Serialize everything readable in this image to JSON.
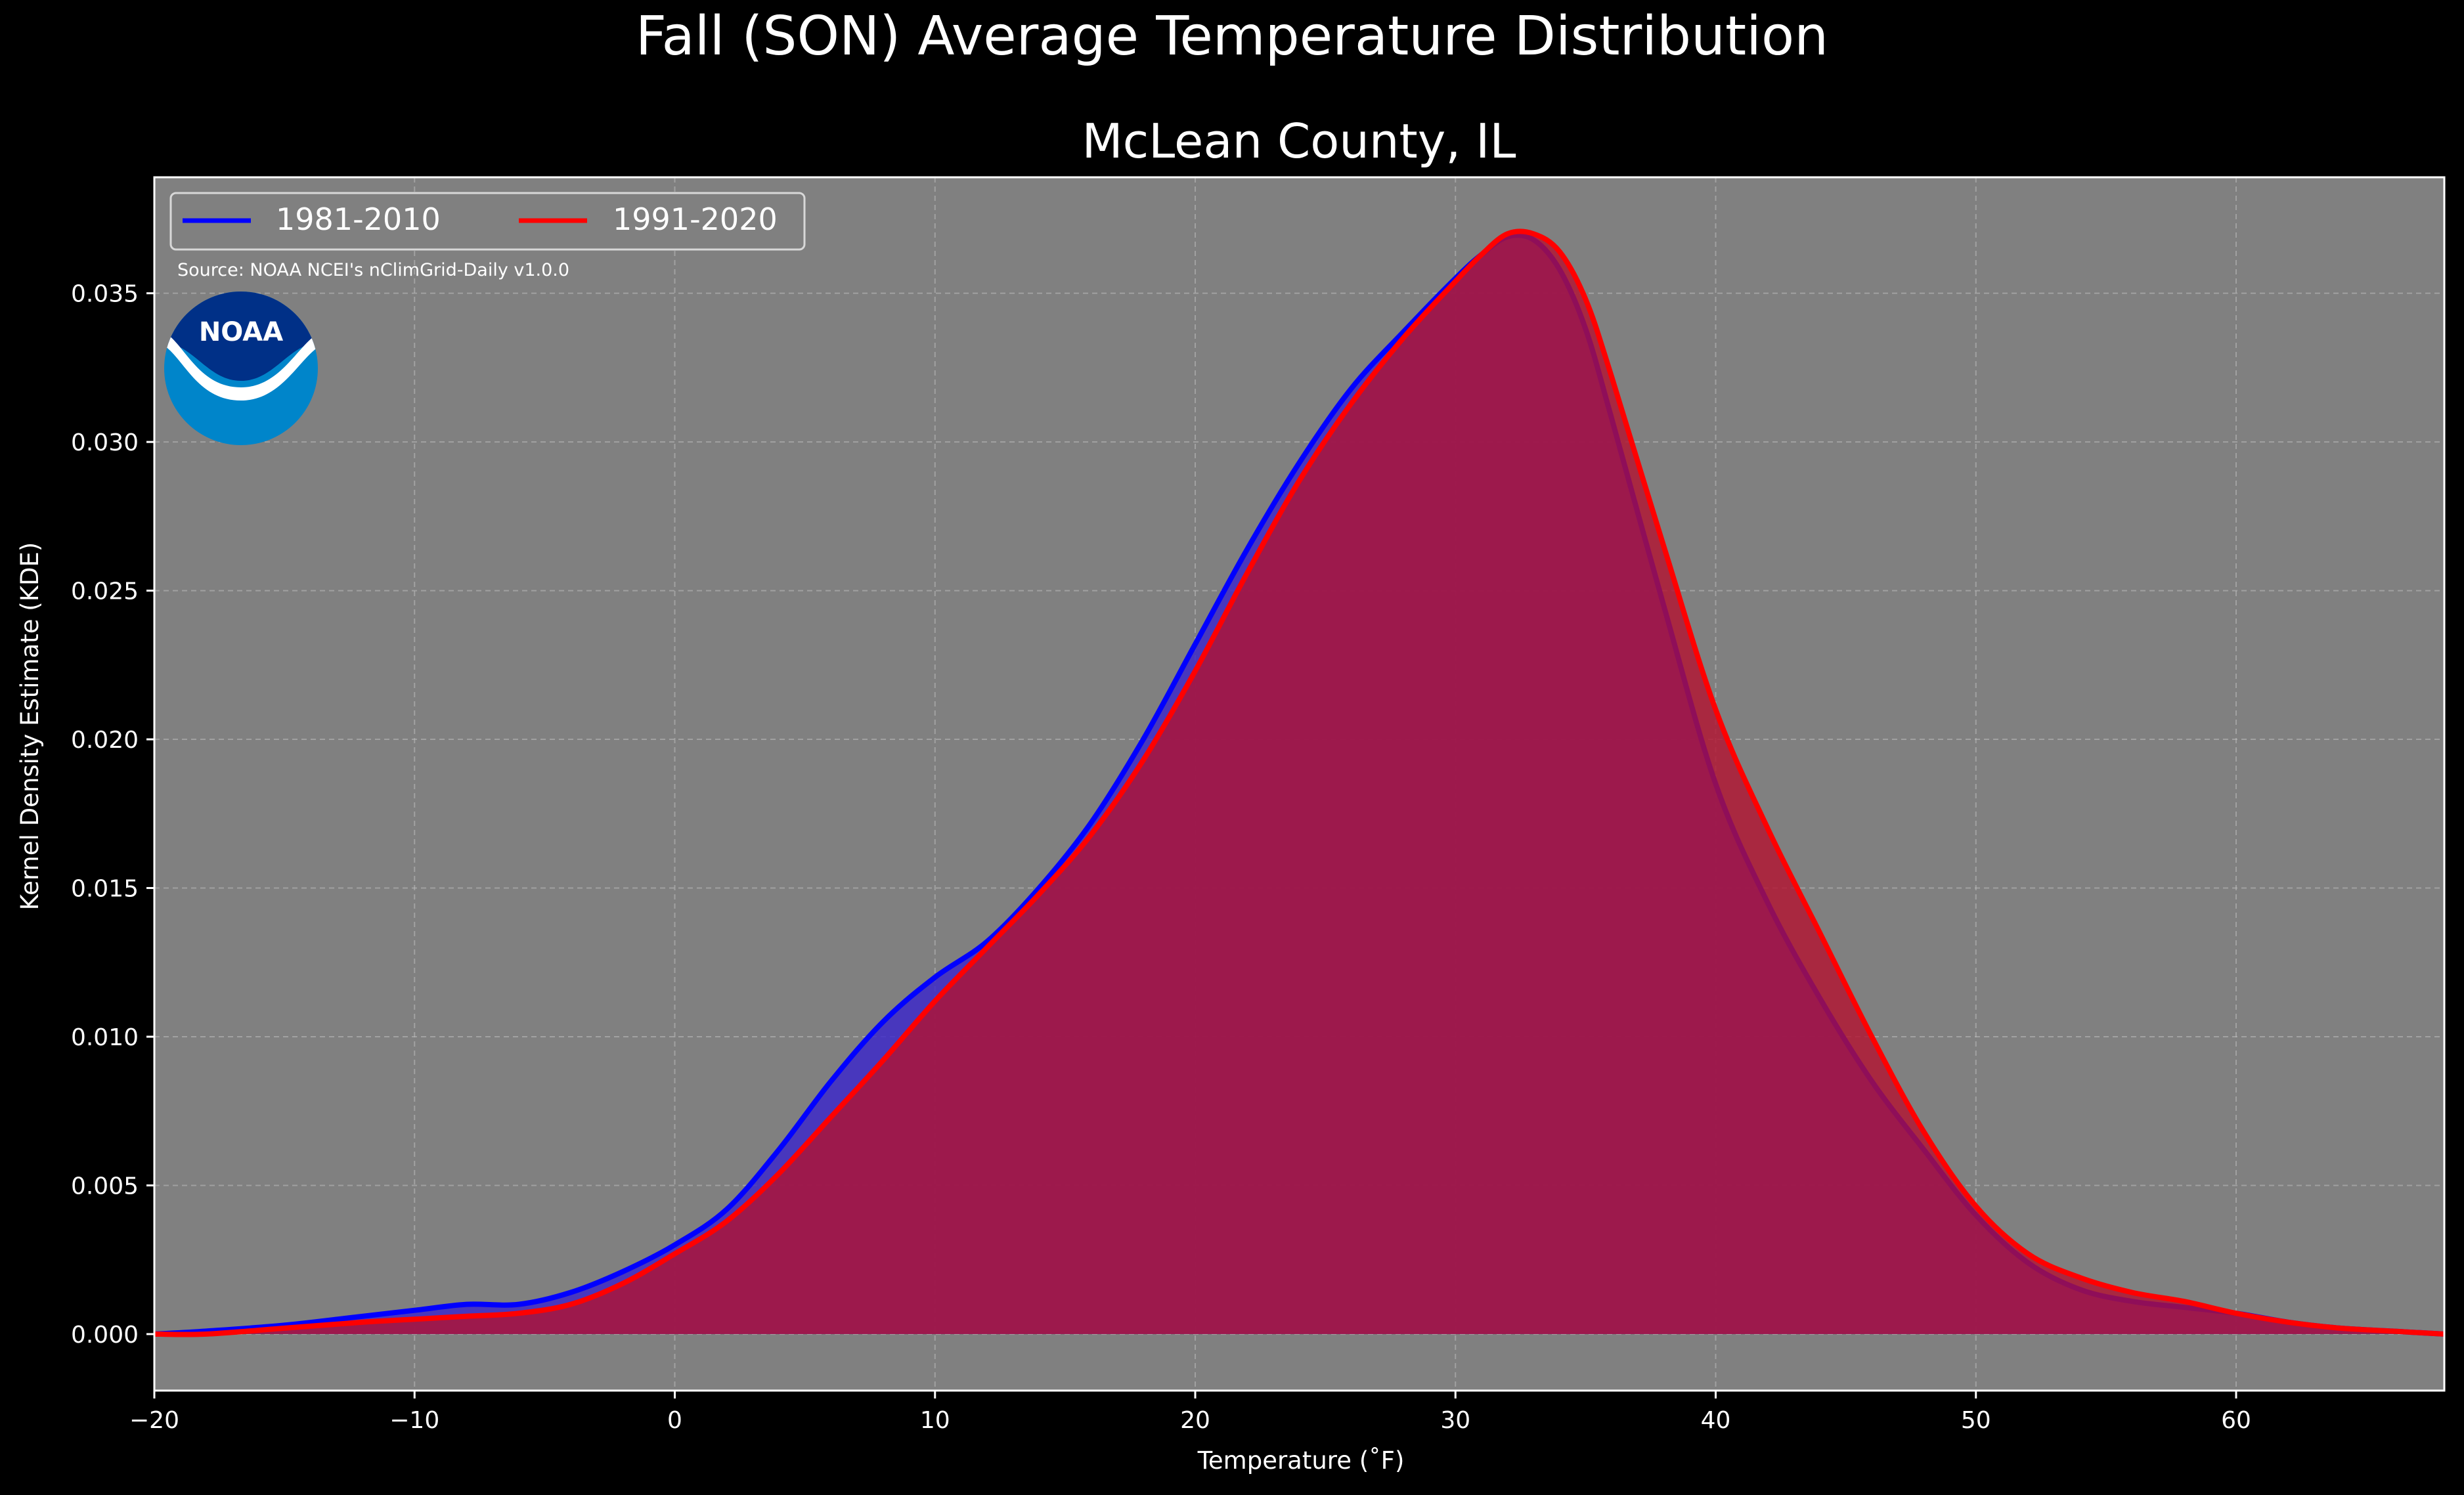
{
  "chart_data": {
    "type": "area",
    "title": "Fall (SON) Average Temperature Distribution",
    "subtitle": "McLean County, IL",
    "xlabel": "Temperature (˚F)",
    "ylabel": "Kernel Density Estimate (KDE)",
    "xlim": [
      -20,
      68
    ],
    "ylim": [
      -0.0019,
      0.0389
    ],
    "xticks": [
      -20,
      -10,
      0,
      10,
      20,
      30,
      40,
      50,
      60
    ],
    "xtick_labels": [
      "−20",
      "−10",
      "0",
      "10",
      "20",
      "30",
      "40",
      "50",
      "60"
    ],
    "yticks": [
      0.0,
      0.005,
      0.01,
      0.015,
      0.02,
      0.025,
      0.03,
      0.035
    ],
    "ytick_labels": [
      "0.000",
      "0.005",
      "0.010",
      "0.015",
      "0.020",
      "0.025",
      "0.030",
      "0.035"
    ],
    "grid": true,
    "legend_position": "top-left",
    "annotation": "Source: NOAA NCEI's nClimGrid-Daily v1.0.0",
    "logo": {
      "text": "NOAA",
      "outer_color": "#0085CA",
      "inner_color": "#003087"
    },
    "background": "#000000",
    "plot_background": "#808080",
    "series": [
      {
        "name": "1981-2010",
        "color": "#0000ff",
        "fill": "#3a24cc",
        "points": [
          [
            -20,
            0.0
          ],
          [
            -18,
            0.0001
          ],
          [
            -15,
            0.0003
          ],
          [
            -12,
            0.0006
          ],
          [
            -10,
            0.0008
          ],
          [
            -8,
            0.001
          ],
          [
            -6,
            0.001
          ],
          [
            -4,
            0.0014
          ],
          [
            -2,
            0.0021
          ],
          [
            0,
            0.003
          ],
          [
            2,
            0.0042
          ],
          [
            4,
            0.0062
          ],
          [
            6,
            0.0085
          ],
          [
            8,
            0.0105
          ],
          [
            10,
            0.012
          ],
          [
            12,
            0.0132
          ],
          [
            14,
            0.015
          ],
          [
            16,
            0.0172
          ],
          [
            18,
            0.02
          ],
          [
            20,
            0.0232
          ],
          [
            22,
            0.0264
          ],
          [
            24,
            0.0293
          ],
          [
            26,
            0.0318
          ],
          [
            28,
            0.0337
          ],
          [
            30,
            0.0355
          ],
          [
            31,
            0.0363
          ],
          [
            32,
            0.0369
          ],
          [
            33,
            0.0368
          ],
          [
            34,
            0.0358
          ],
          [
            35,
            0.0338
          ],
          [
            36,
            0.0308
          ],
          [
            38,
            0.0245
          ],
          [
            40,
            0.0185
          ],
          [
            42,
            0.0145
          ],
          [
            44,
            0.0113
          ],
          [
            46,
            0.0085
          ],
          [
            48,
            0.0062
          ],
          [
            50,
            0.004
          ],
          [
            52,
            0.0024
          ],
          [
            54,
            0.0015
          ],
          [
            56,
            0.0011
          ],
          [
            58,
            0.0009
          ],
          [
            60,
            0.0007
          ],
          [
            62,
            0.0004
          ],
          [
            64,
            0.0002
          ],
          [
            66,
            0.0001
          ],
          [
            68,
            0.0
          ]
        ]
      },
      {
        "name": "1991-2020",
        "color": "#ff0000",
        "fill": "#b3122f",
        "points": [
          [
            -20,
            0.0
          ],
          [
            -18,
            0.0
          ],
          [
            -15,
            0.0002
          ],
          [
            -12,
            0.0004
          ],
          [
            -10,
            0.0005
          ],
          [
            -8,
            0.0006
          ],
          [
            -6,
            0.0007
          ],
          [
            -4,
            0.001
          ],
          [
            -2,
            0.0017
          ],
          [
            0,
            0.0027
          ],
          [
            2,
            0.0038
          ],
          [
            4,
            0.0054
          ],
          [
            6,
            0.0073
          ],
          [
            8,
            0.0092
          ],
          [
            10,
            0.0112
          ],
          [
            12,
            0.013
          ],
          [
            14,
            0.0148
          ],
          [
            16,
            0.0168
          ],
          [
            18,
            0.0193
          ],
          [
            20,
            0.0223
          ],
          [
            22,
            0.0256
          ],
          [
            24,
            0.0287
          ],
          [
            26,
            0.0313
          ],
          [
            28,
            0.0335
          ],
          [
            30,
            0.0354
          ],
          [
            31,
            0.0363
          ],
          [
            32,
            0.037
          ],
          [
            33,
            0.037
          ],
          [
            34,
            0.0364
          ],
          [
            35,
            0.0348
          ],
          [
            36,
            0.0322
          ],
          [
            38,
            0.0265
          ],
          [
            40,
            0.021
          ],
          [
            42,
            0.017
          ],
          [
            44,
            0.0135
          ],
          [
            46,
            0.01
          ],
          [
            48,
            0.0068
          ],
          [
            50,
            0.0043
          ],
          [
            52,
            0.0027
          ],
          [
            54,
            0.0019
          ],
          [
            56,
            0.0014
          ],
          [
            58,
            0.0011
          ],
          [
            60,
            0.0007
          ],
          [
            62,
            0.0004
          ],
          [
            64,
            0.0002
          ],
          [
            66,
            0.0001
          ],
          [
            68,
            0.0
          ]
        ]
      }
    ]
  }
}
